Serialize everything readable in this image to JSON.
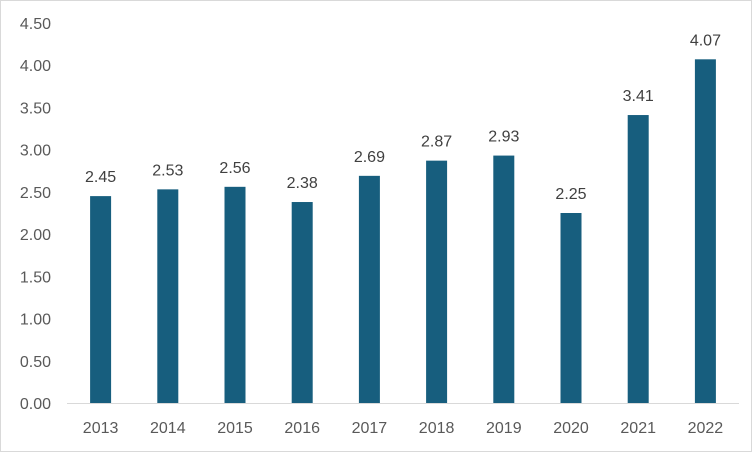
{
  "chart_data": {
    "type": "bar",
    "title": "",
    "xlabel": "",
    "ylabel": "",
    "categories": [
      "2013",
      "2014",
      "2015",
      "2016",
      "2017",
      "2018",
      "2019",
      "2020",
      "2021",
      "2022"
    ],
    "values": [
      2.45,
      2.53,
      2.56,
      2.38,
      2.69,
      2.87,
      2.93,
      2.25,
      3.41,
      4.07
    ],
    "data_labels": [
      "2.45",
      "2.53",
      "2.56",
      "2.38",
      "2.69",
      "2.87",
      "2.93",
      "2.25",
      "3.41",
      "4.07"
    ],
    "ylim": [
      0,
      4.5
    ],
    "yticks": [
      0,
      0.5,
      1,
      1.5,
      2,
      2.5,
      3,
      3.5,
      4,
      4.5
    ],
    "ytick_labels": [
      "0.00",
      "0.50",
      "1.00",
      "1.50",
      "2.00",
      "2.50",
      "3.00",
      "3.50",
      "4.00",
      "4.50"
    ],
    "grid": false,
    "legend": "none",
    "colors": {
      "bar": "#175E7E",
      "axis": "#d9d9d9",
      "tick_text": "#595959",
      "label_text": "#404040"
    }
  }
}
